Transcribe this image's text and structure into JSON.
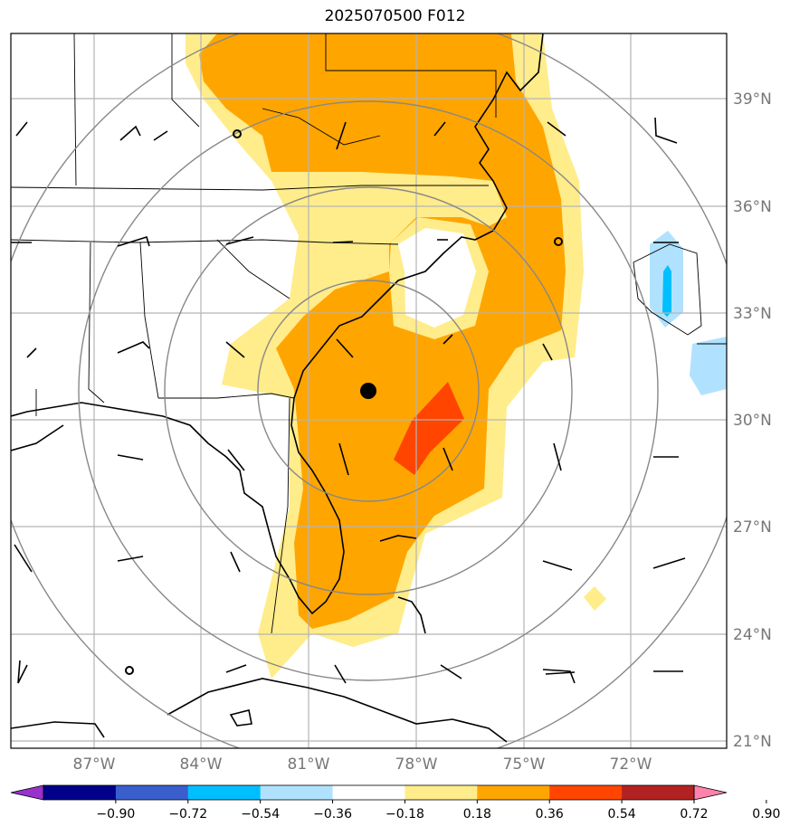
{
  "title": "2025070500 F012",
  "lat_labels": [
    "39°N",
    "36°N",
    "33°N",
    "30°N",
    "27°N",
    "24°N",
    "21°N"
  ],
  "lon_labels": [
    "87°W",
    "84°W",
    "81°W",
    "78°W",
    "75°W",
    "72°W"
  ],
  "colorbar": {
    "tick_labels": [
      "−0.90",
      "−0.72",
      "−0.54",
      "−0.36",
      "−0.18",
      "0.18",
      "0.36",
      "0.54",
      "0.72",
      "0.90"
    ],
    "colors": [
      "#9932cc",
      "#00008b",
      "#3a5fcd",
      "#00bfff",
      "#b0e2ff",
      "#ffffff",
      "#ffec8b",
      "#ffa500",
      "#ff4500",
      "#b22222",
      "#ff82ab"
    ]
  },
  "center_marker": "storm-center-dot",
  "range_rings": 4
}
